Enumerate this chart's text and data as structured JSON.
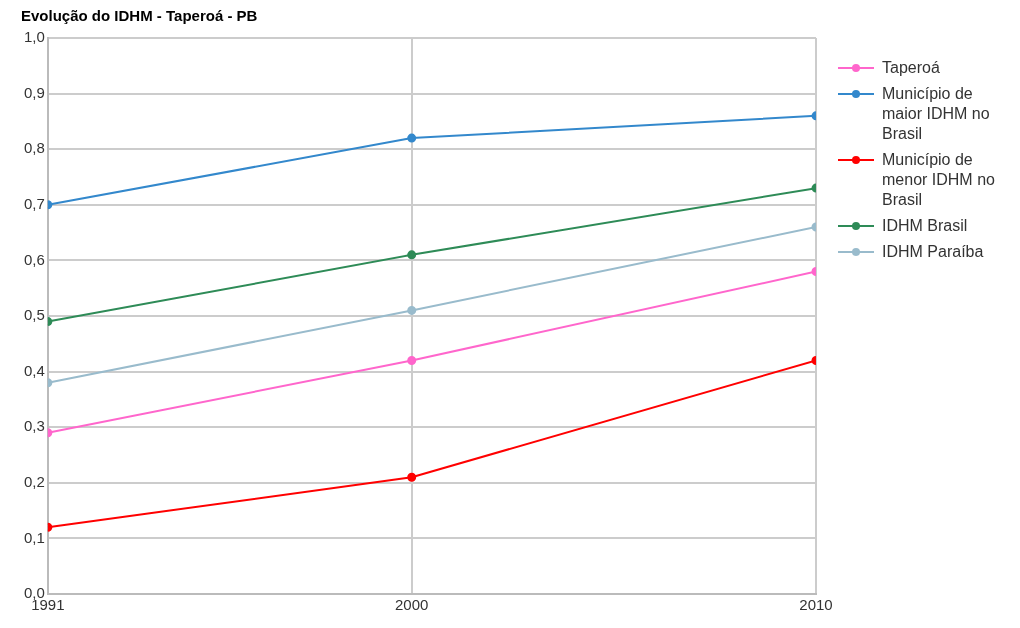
{
  "chart_data": {
    "type": "line",
    "title": "Evolução do IDHM - Taperoá - PB",
    "x": [
      1991,
      2000,
      2010
    ],
    "xlim": [
      1991,
      2010
    ],
    "xticks": [
      1991,
      2000,
      2010
    ],
    "ylim": [
      0,
      1
    ],
    "yticks": [
      {
        "value": 0,
        "label": "0,0"
      },
      {
        "value": 0.1,
        "label": "0,1"
      },
      {
        "value": 0.2,
        "label": "0,2"
      },
      {
        "value": 0.3,
        "label": "0,3"
      },
      {
        "value": 0.4,
        "label": "0,4"
      },
      {
        "value": 0.5,
        "label": "0,5"
      },
      {
        "value": 0.6,
        "label": "0,6"
      },
      {
        "value": 0.7,
        "label": "0,7"
      },
      {
        "value": 0.8,
        "label": "0,8"
      },
      {
        "value": 0.9,
        "label": "0,9"
      },
      {
        "value": 1,
        "label": "1,0"
      }
    ],
    "grid": true,
    "legend": "right",
    "marker": "circle",
    "line_style": "solid",
    "series": [
      {
        "name": "Taperoá",
        "color": "#ff66cc",
        "values": [
          0.29,
          0.42,
          0.58
        ]
      },
      {
        "name": "Município de maior IDHM no Brasil",
        "color": "#3388cc",
        "values": [
          0.7,
          0.82,
          0.86
        ]
      },
      {
        "name": "Município de menor IDHM no Brasil",
        "color": "#ff0000",
        "values": [
          0.12,
          0.21,
          0.42
        ]
      },
      {
        "name": "IDHM Brasil",
        "color": "#2e8b57",
        "values": [
          0.49,
          0.61,
          0.73
        ]
      },
      {
        "name": "IDHM Paraíba",
        "color": "#99bbcc",
        "values": [
          0.38,
          0.51,
          0.66
        ]
      }
    ]
  }
}
